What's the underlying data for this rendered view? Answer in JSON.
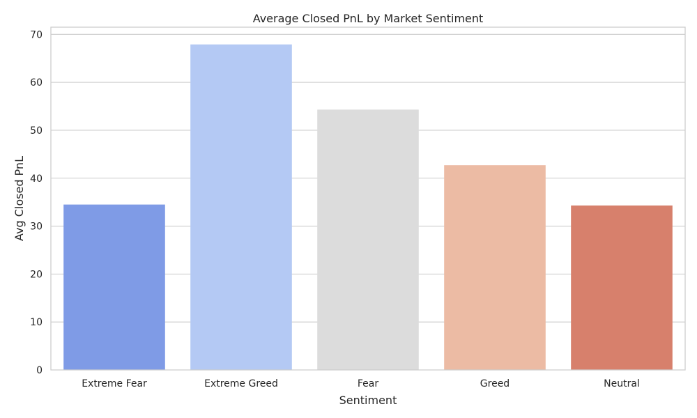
{
  "chart_data": {
    "type": "bar",
    "title": "Average Closed PnL by Market Sentiment",
    "xlabel": "Sentiment",
    "ylabel": "Avg Closed PnL",
    "categories": [
      "Extreme Fear",
      "Extreme Greed",
      "Fear",
      "Greed",
      "Neutral"
    ],
    "values": [
      34.5,
      67.9,
      54.3,
      42.7,
      34.3
    ],
    "colors": [
      "#7f9be6",
      "#b4c9f4",
      "#dcdcdc",
      "#ecbba4",
      "#d7806c"
    ],
    "ylim": [
      0,
      71.5
    ],
    "yticks": [
      0,
      10,
      20,
      30,
      40,
      50,
      60,
      70
    ],
    "grid": true,
    "legend": false
  }
}
